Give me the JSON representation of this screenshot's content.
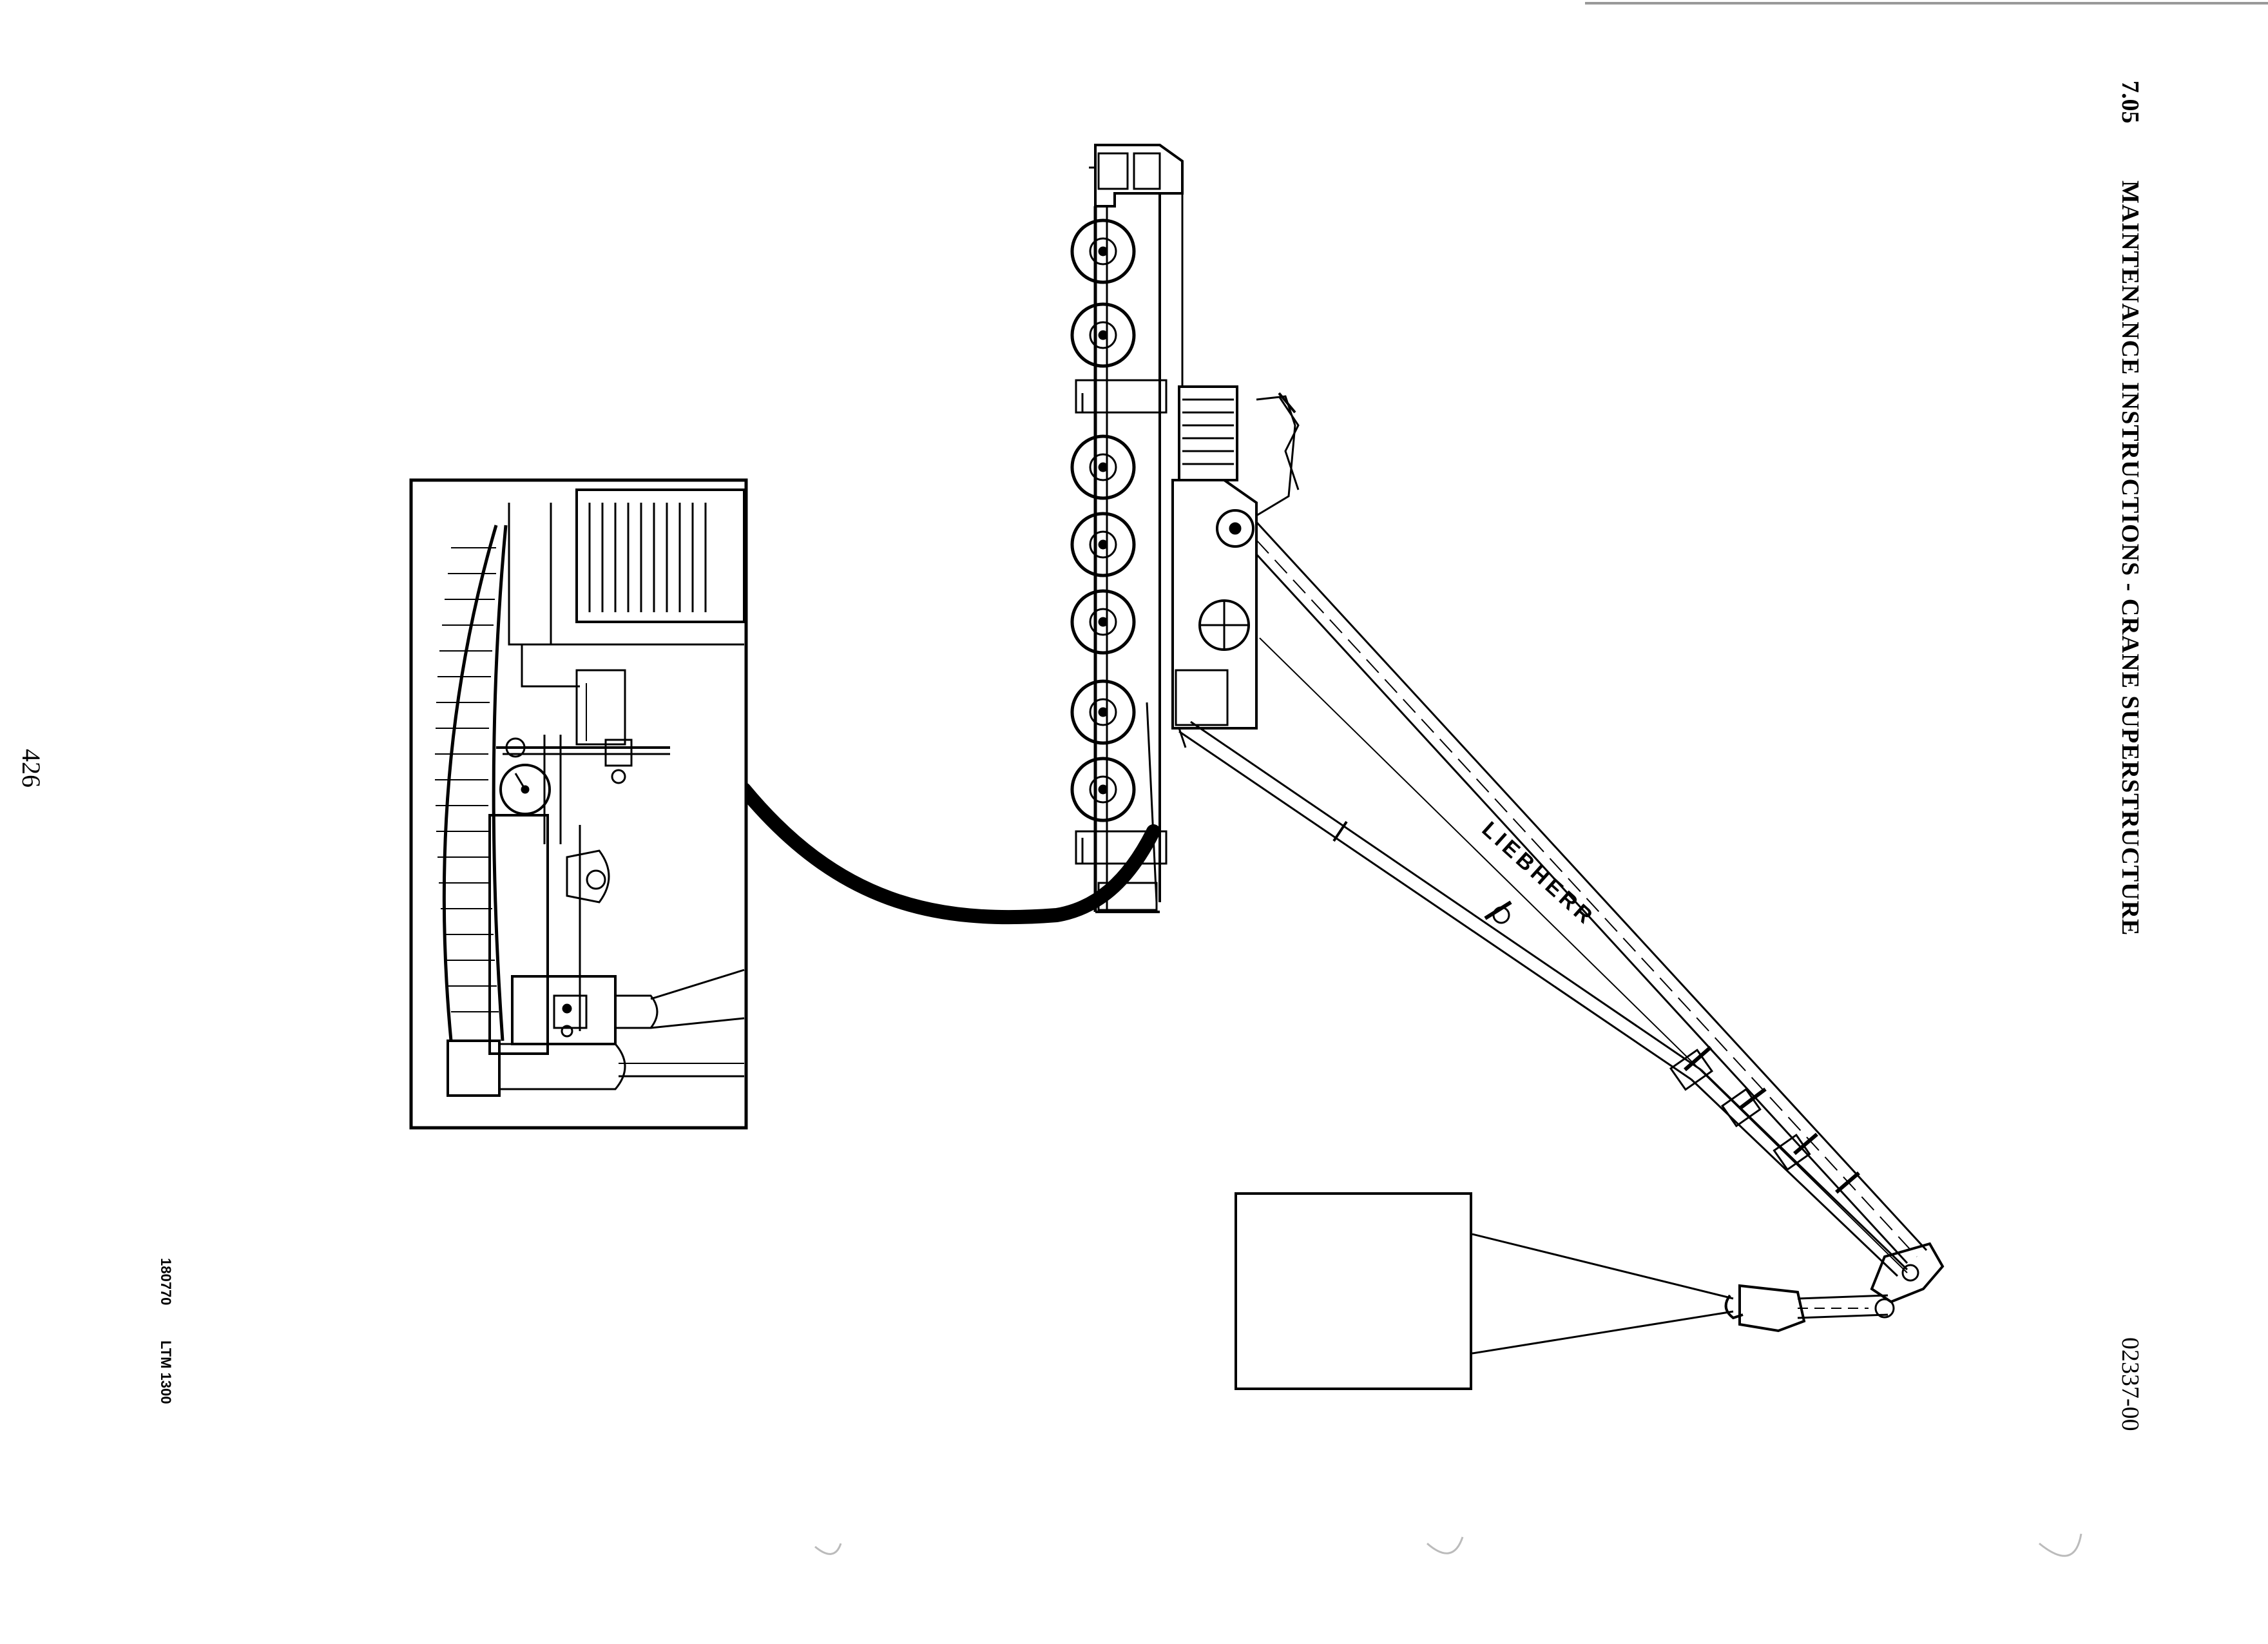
{
  "header": {
    "section_number": "7.05",
    "section_title": "MAINTENANCE INSTRUCTIONS - CRANE SUPERSTRUCTURE",
    "document_number": "02337-00"
  },
  "footer": {
    "page_number": "426",
    "print_code": "180770",
    "model": "LTM 1300"
  },
  "figure": {
    "boom_brand": "LIEBHERR",
    "icons": [
      "mobile-crane-icon",
      "dial-indicator-icon",
      "load-weight-icon"
    ]
  }
}
